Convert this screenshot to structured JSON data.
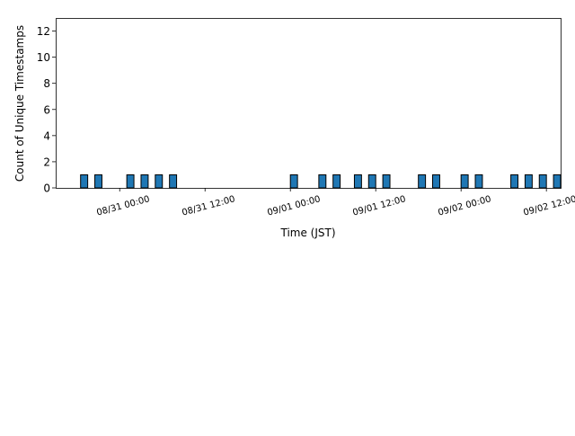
{
  "chart_data": {
    "type": "bar",
    "title": "",
    "xlabel": "Time (JST)",
    "ylabel": "Count of Unique Timestamps",
    "ylim": [
      0,
      13
    ],
    "yticks": [
      0,
      2,
      4,
      6,
      8,
      10,
      12
    ],
    "xlim": [
      "08/30 15:00",
      "09/02 14:00"
    ],
    "xticks": [
      "08/31 00:00",
      "08/31 12:00",
      "09/01 00:00",
      "09/01 12:00",
      "09/02 00:00",
      "09/02 12:00"
    ],
    "grid": false,
    "legend": "none",
    "bar_color": "#1f77b4",
    "edge_color": "#000000",
    "bins": [
      {
        "x": "08/30 19:00",
        "value": 1
      },
      {
        "x": "08/30 21:00",
        "value": 1
      },
      {
        "x": "08/31 01:30",
        "value": 1
      },
      {
        "x": "08/31 03:30",
        "value": 1
      },
      {
        "x": "08/31 05:30",
        "value": 1
      },
      {
        "x": "08/31 07:30",
        "value": 1
      },
      {
        "x": "09/01 00:30",
        "value": 1
      },
      {
        "x": "09/01 04:30",
        "value": 1
      },
      {
        "x": "09/01 06:30",
        "value": 1
      },
      {
        "x": "09/01 09:30",
        "value": 1
      },
      {
        "x": "09/01 11:30",
        "value": 1
      },
      {
        "x": "09/01 13:30",
        "value": 1
      },
      {
        "x": "09/01 18:30",
        "value": 1
      },
      {
        "x": "09/01 20:30",
        "value": 1
      },
      {
        "x": "09/02 00:30",
        "value": 1
      },
      {
        "x": "09/02 02:30",
        "value": 1
      },
      {
        "x": "09/02 07:30",
        "value": 1
      },
      {
        "x": "09/02 09:30",
        "value": 1
      },
      {
        "x": "09/02 11:30",
        "value": 1
      },
      {
        "x": "09/02 13:30",
        "value": 1
      }
    ]
  }
}
